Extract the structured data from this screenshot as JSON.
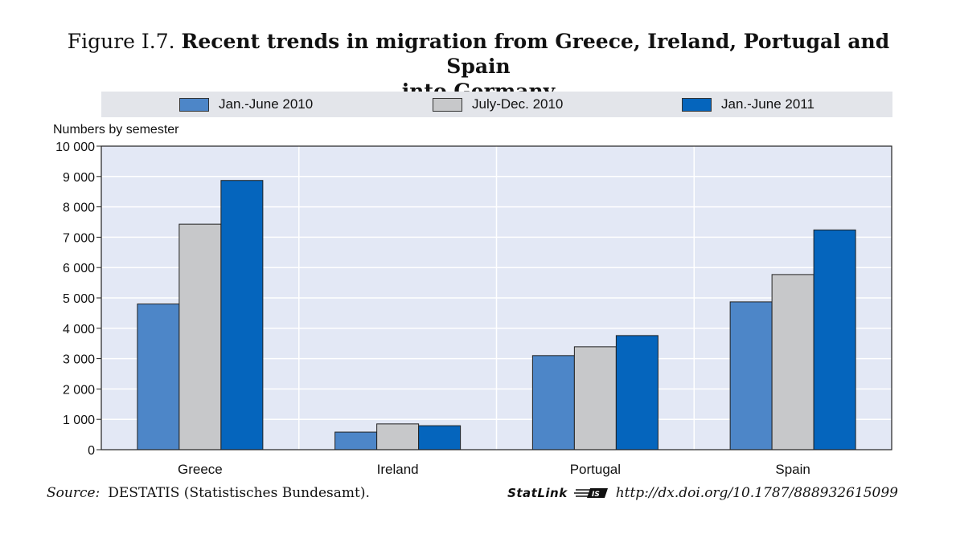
{
  "title": {
    "prefix": "Figure I.7.",
    "main_line1": "Recent trends in migration from Greece, Ireland, Portugal and Spain",
    "main_line2": "into Germany"
  },
  "footer": {
    "source_label": "Source:",
    "source_text": "DESTATIS (Statistisches Bundesamt).",
    "statlink_label": "StatLink",
    "statlink_icon": "statlink-logo-icon",
    "doi": "http://dx.doi.org/10.1787/888932615099"
  },
  "chart_data": {
    "type": "bar",
    "ylabel": "Numbers by semester",
    "xlabel": "",
    "categories": [
      "Greece",
      "Ireland",
      "Portugal",
      "Spain"
    ],
    "series": [
      {
        "name": "Jan.-June 2010",
        "color": "#4d86c8",
        "values": [
          4800,
          580,
          3100,
          4870
        ]
      },
      {
        "name": "July-Dec. 2010",
        "color": "#c7c8ca",
        "values": [
          7430,
          850,
          3390,
          5770
        ]
      },
      {
        "name": "Jan.-June 2011",
        "color": "#0565bd",
        "values": [
          8870,
          790,
          3760,
          7240
        ]
      }
    ],
    "ylim": [
      0,
      10000
    ],
    "yticks": [
      0,
      1000,
      2000,
      3000,
      4000,
      5000,
      6000,
      7000,
      8000,
      9000,
      10000
    ],
    "ytick_labels": [
      "0",
      "1 000",
      "2 000",
      "3 000",
      "4 000",
      "5 000",
      "6 000",
      "7 000",
      "8 000",
      "9 000",
      "10 000"
    ],
    "grid": true,
    "legend_position": "top",
    "plot_background": "#e3e8f5"
  }
}
